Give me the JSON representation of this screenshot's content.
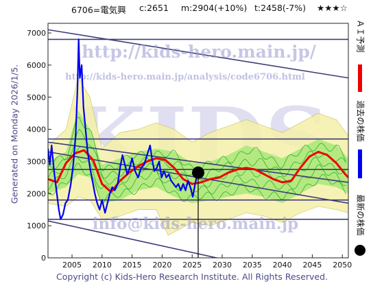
{
  "header": {
    "code_name": "6706=電気興",
    "current": "c:2651",
    "mid": "m:2904(+10%)",
    "target": "t:2458(-7%)",
    "rating": "★★★☆"
  },
  "side_label": "Generated on Monday 2026/1/5.",
  "footer": "Copyright (c) Kids-Hero Research Institute. All Rights Reserved.",
  "watermarks": {
    "big": "KIDS",
    "url1": "http://kids-hero.main.jp/",
    "url2": "http://kids-hero.main.jp/analysis/code6706.html",
    "email": "info@kids-hero.main.jp"
  },
  "legend": {
    "ai_forecast": "ＡＩ予測",
    "past_price": "過去の株価",
    "latest_price": "最新の株価"
  },
  "colors": {
    "past_price": "#0000ee",
    "ai_forecast": "#ee0000",
    "latest_marker": "#000000",
    "trend_lines": "#3c3c78",
    "band_outer": "#f4f0a8",
    "band_inner": "#a8e878",
    "band_lines": "#22aa22"
  },
  "chart_data": {
    "type": "line",
    "xlabel": "",
    "ylabel": "",
    "xlim": [
      2001,
      2051
    ],
    "ylim": [
      0,
      7300
    ],
    "x_ticks": [
      2005,
      2010,
      2015,
      2020,
      2025,
      2030,
      2035,
      2040,
      2045,
      2050
    ],
    "y_ticks": [
      0,
      1000,
      2000,
      3000,
      4000,
      5000,
      6000,
      7000
    ],
    "grid": false,
    "latest_point": {
      "x": 2026.0,
      "y": 2651
    },
    "series": [
      {
        "name": "過去の株価",
        "points": [
          [
            2001.0,
            3400
          ],
          [
            2001.3,
            2900
          ],
          [
            2001.6,
            3500
          ],
          [
            2002.0,
            2700
          ],
          [
            2002.4,
            2100
          ],
          [
            2002.8,
            1500
          ],
          [
            2003.1,
            1200
          ],
          [
            2003.5,
            1350
          ],
          [
            2003.9,
            1700
          ],
          [
            2004.3,
            1800
          ],
          [
            2004.8,
            2300
          ],
          [
            2005.2,
            2900
          ],
          [
            2005.6,
            3800
          ],
          [
            2005.9,
            5200
          ],
          [
            2006.1,
            6800
          ],
          [
            2006.3,
            5600
          ],
          [
            2006.6,
            6000
          ],
          [
            2006.9,
            4700
          ],
          [
            2007.3,
            3900
          ],
          [
            2007.6,
            3300
          ],
          [
            2008.0,
            2800
          ],
          [
            2008.4,
            2400
          ],
          [
            2008.8,
            2000
          ],
          [
            2009.2,
            1700
          ],
          [
            2009.6,
            1500
          ],
          [
            2010.0,
            1800
          ],
          [
            2010.5,
            1400
          ],
          [
            2010.9,
            1700
          ],
          [
            2011.3,
            2000
          ],
          [
            2011.7,
            2200
          ],
          [
            2012.1,
            2100
          ],
          [
            2012.6,
            2300
          ],
          [
            2013.0,
            2800
          ],
          [
            2013.4,
            3200
          ],
          [
            2013.8,
            2900
          ],
          [
            2014.2,
            2600
          ],
          [
            2014.6,
            2800
          ],
          [
            2015.0,
            3100
          ],
          [
            2015.5,
            2700
          ],
          [
            2016.0,
            2500
          ],
          [
            2016.5,
            2800
          ],
          [
            2017.0,
            2900
          ],
          [
            2017.5,
            3200
          ],
          [
            2018.0,
            3500
          ],
          [
            2018.3,
            3100
          ],
          [
            2018.7,
            2700
          ],
          [
            2019.1,
            2800
          ],
          [
            2019.5,
            3000
          ],
          [
            2019.9,
            2500
          ],
          [
            2020.3,
            2700
          ],
          [
            2020.7,
            2500
          ],
          [
            2021.1,
            2600
          ],
          [
            2021.5,
            2400
          ],
          [
            2021.9,
            2300
          ],
          [
            2022.3,
            2200
          ],
          [
            2022.7,
            2300
          ],
          [
            2023.1,
            2100
          ],
          [
            2023.5,
            2300
          ],
          [
            2023.9,
            2100
          ],
          [
            2024.3,
            2400
          ],
          [
            2024.7,
            2200
          ],
          [
            2025.1,
            1900
          ],
          [
            2025.5,
            2300
          ],
          [
            2025.9,
            2651
          ]
        ]
      },
      {
        "name": "ＡＩ予測",
        "points": [
          [
            2001.0,
            2450
          ],
          [
            2002.5,
            2350
          ],
          [
            2004.0,
            2950
          ],
          [
            2005.5,
            3250
          ],
          [
            2007.0,
            3350
          ],
          [
            2008.5,
            3050
          ],
          [
            2010.0,
            2300
          ],
          [
            2011.5,
            2050
          ],
          [
            2013.0,
            2400
          ],
          [
            2014.5,
            2650
          ],
          [
            2016.0,
            2850
          ],
          [
            2017.5,
            3000
          ],
          [
            2019.0,
            3100
          ],
          [
            2020.5,
            3050
          ],
          [
            2022.0,
            2800
          ],
          [
            2023.5,
            2450
          ],
          [
            2025.0,
            2300
          ],
          [
            2026.5,
            2350
          ],
          [
            2028.0,
            2450
          ],
          [
            2029.5,
            2500
          ],
          [
            2031.0,
            2650
          ],
          [
            2032.5,
            2750
          ],
          [
            2034.0,
            2800
          ],
          [
            2035.5,
            2750
          ],
          [
            2037.0,
            2600
          ],
          [
            2038.5,
            2450
          ],
          [
            2040.0,
            2350
          ],
          [
            2041.5,
            2400
          ],
          [
            2043.0,
            2800
          ],
          [
            2044.5,
            3150
          ],
          [
            2046.0,
            3300
          ],
          [
            2047.5,
            3200
          ],
          [
            2049.0,
            2950
          ],
          [
            2050.5,
            2600
          ],
          [
            2051.0,
            2500
          ]
        ]
      }
    ],
    "bands": {
      "outer_upper": [
        [
          2001.0,
          3500
        ],
        [
          2004.0,
          4000
        ],
        [
          2006.0,
          5600
        ],
        [
          2008.0,
          5000
        ],
        [
          2010.0,
          3400
        ],
        [
          2013.0,
          3900
        ],
        [
          2016.0,
          4000
        ],
        [
          2019.0,
          4200
        ],
        [
          2022.0,
          4000
        ],
        [
          2025.0,
          3600
        ],
        [
          2028.0,
          3900
        ],
        [
          2031.0,
          4100
        ],
        [
          2034.0,
          4300
        ],
        [
          2037.0,
          4100
        ],
        [
          2040.0,
          3900
        ],
        [
          2043.0,
          4200
        ],
        [
          2046.0,
          4500
        ],
        [
          2049.0,
          4300
        ],
        [
          2051.0,
          3800
        ]
      ],
      "outer_lower": [
        [
          2001.0,
          1700
        ],
        [
          2004.0,
          1600
        ],
        [
          2006.0,
          1900
        ],
        [
          2008.0,
          1800
        ],
        [
          2010.0,
          1200
        ],
        [
          2013.0,
          1300
        ],
        [
          2016.0,
          1500
        ],
        [
          2019.0,
          1500
        ],
        [
          2021.0,
          700
        ],
        [
          2023.0,
          900
        ],
        [
          2025.0,
          1100
        ],
        [
          2028.0,
          1000
        ],
        [
          2031.0,
          1200
        ],
        [
          2034.0,
          1400
        ],
        [
          2037.0,
          1300
        ],
        [
          2040.0,
          1100
        ],
        [
          2043.0,
          1400
        ],
        [
          2046.0,
          1600
        ],
        [
          2049.0,
          1500
        ],
        [
          2051.0,
          1400
        ]
      ],
      "inner_upper": [
        [
          2001.0,
          3000
        ],
        [
          2004.0,
          3300
        ],
        [
          2006.0,
          4600
        ],
        [
          2008.0,
          4000
        ],
        [
          2010.0,
          2900
        ],
        [
          2013.0,
          3100
        ],
        [
          2016.0,
          3300
        ],
        [
          2019.0,
          3400
        ],
        [
          2022.0,
          3300
        ],
        [
          2025.0,
          2950
        ],
        [
          2028.0,
          3000
        ],
        [
          2031.0,
          3200
        ],
        [
          2034.0,
          3500
        ],
        [
          2037.0,
          3300
        ],
        [
          2040.0,
          3100
        ],
        [
          2043.0,
          3400
        ],
        [
          2046.0,
          3700
        ],
        [
          2049.0,
          3500
        ],
        [
          2051.0,
          3100
        ]
      ],
      "inner_lower": [
        [
          2001.0,
          2000
        ],
        [
          2004.0,
          2200
        ],
        [
          2006.0,
          2600
        ],
        [
          2008.0,
          2500
        ],
        [
          2010.0,
          1700
        ],
        [
          2013.0,
          1800
        ],
        [
          2016.0,
          2100
        ],
        [
          2019.0,
          2200
        ],
        [
          2022.0,
          1900
        ],
        [
          2025.0,
          1700
        ],
        [
          2028.0,
          1800
        ],
        [
          2031.0,
          1900
        ],
        [
          2034.0,
          2000
        ],
        [
          2037.0,
          1900
        ],
        [
          2040.0,
          1700
        ],
        [
          2043.0,
          2000
        ],
        [
          2046.0,
          2300
        ],
        [
          2049.0,
          2200
        ],
        [
          2051.0,
          2000
        ]
      ]
    },
    "trend_lines": [
      {
        "from": [
          2001,
          6800
        ],
        "to": [
          2051,
          6800
        ]
      },
      {
        "from": [
          2001,
          7100
        ],
        "to": [
          2051,
          5600
        ]
      },
      {
        "from": [
          2001,
          3700
        ],
        "to": [
          2051,
          3700
        ]
      },
      {
        "from": [
          2001,
          3300
        ],
        "to": [
          2051,
          1700
        ]
      },
      {
        "from": [
          2001,
          3600
        ],
        "to": [
          2051,
          2350
        ]
      },
      {
        "from": [
          2001,
          2750
        ],
        "to": [
          2051,
          2750
        ]
      },
      {
        "from": [
          2001,
          1800
        ],
        "to": [
          2051,
          1800
        ]
      },
      {
        "from": [
          2001,
          1200
        ],
        "to": [
          2051,
          1200
        ]
      },
      {
        "from": [
          2001,
          1150
        ],
        "to": [
          2051,
          -900
        ]
      }
    ],
    "latest_vline_x": 2026.0
  }
}
